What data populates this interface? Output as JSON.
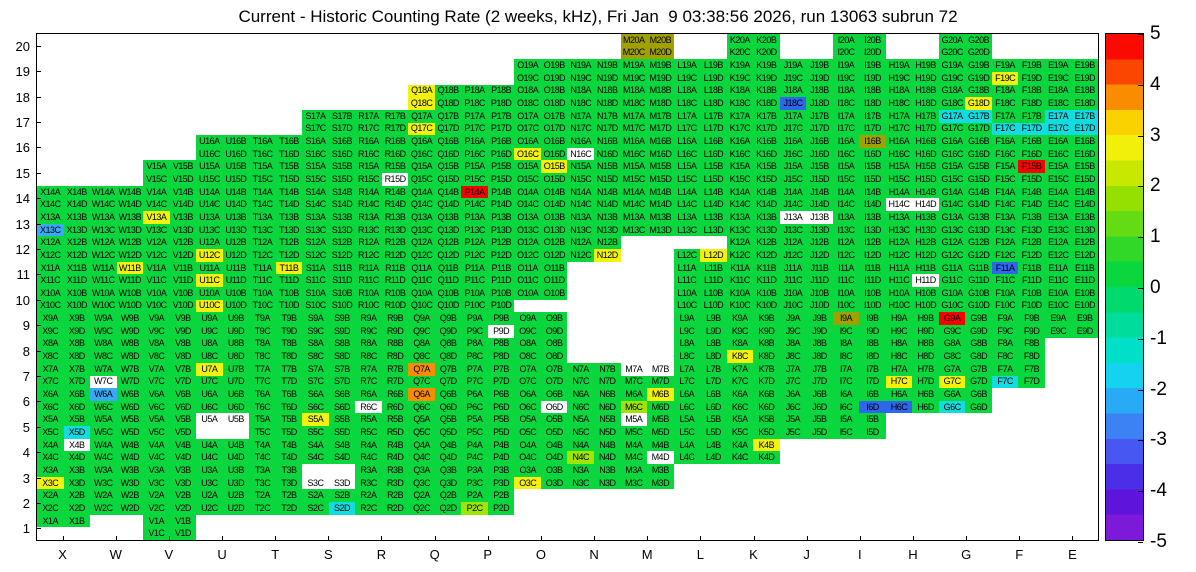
{
  "title": "Current - Historic Counting Rate (2 weeks, kHz), Fri Jan  9 03:38:56 2026, run 13063 subrun 72",
  "y_axis": {
    "ticks": [
      "20",
      "19",
      "18",
      "17",
      "16",
      "15",
      "14",
      "13",
      "12",
      "11",
      "10",
      "9",
      "8",
      "7",
      "6",
      "5",
      "4",
      "3",
      "2",
      "1"
    ]
  },
  "x_axis": {
    "ticks": [
      "X",
      "W",
      "V",
      "U",
      "T",
      "S",
      "R",
      "Q",
      "P",
      "O",
      "N",
      "M",
      "L",
      "K",
      "J",
      "I",
      "H",
      "G",
      "F",
      "E"
    ]
  },
  "colorbar": {
    "ticks": [
      "5",
      "4",
      "3",
      "2",
      "1",
      "0",
      "-1",
      "-2",
      "-3",
      "-4",
      "-5"
    ],
    "bands": [
      "#fa0a00",
      "#fa4600",
      "#fa8c00",
      "#fad200",
      "#f0f00a",
      "#c8e800",
      "#96e000",
      "#64dc14",
      "#32d828",
      "#0ad63e",
      "#00d96e",
      "#00dc9b",
      "#00dfc8",
      "#14d2f0",
      "#28aaf5",
      "#3c82f5",
      "#4657f2",
      "#4b2ee8",
      "#5f14dc",
      "#7d19d9"
    ]
  },
  "palette": {
    "g": "#0ad63e",
    "yg": "#a0e400",
    "y": "#f2f20c",
    "ol": "#a0a000",
    "o": "#fa8c00",
    "r": "#fa0000",
    "c": "#12dce0",
    "lb": "#38aaf5",
    "b": "#2e66ee",
    "w": "#ffffff"
  },
  "chart_data": {
    "type": "heatmap",
    "title": "Current - Historic Counting Rate (2 weeks, kHz)",
    "timestamp": "Fri Jan  9 03:38:56 2026",
    "run": "13063",
    "subrun": "72",
    "columns": [
      "X",
      "W",
      "V",
      "U",
      "T",
      "S",
      "R",
      "Q",
      "P",
      "O",
      "N",
      "M",
      "L",
      "K",
      "J",
      "I",
      "H",
      "G",
      "F",
      "E"
    ],
    "rows": [
      1,
      2,
      3,
      4,
      5,
      6,
      7,
      8,
      9,
      10,
      11,
      12,
      13,
      14,
      15,
      16,
      17,
      18,
      19,
      20
    ],
    "row_min": 1,
    "row_max": 20,
    "channels_per_cell": [
      "A",
      "B",
      "C",
      "D"
    ],
    "cell_label_scheme": "column+row+channel (A,B on top line; C,D on bottom line)",
    "value_range": [
      -5,
      5
    ],
    "default_token": "g",
    "token_values": {
      "g": 0.3,
      "yg": 1.5,
      "y": 2.2,
      "ol": 2.5,
      "o": 3.8,
      "r": 5,
      "c": -1.3,
      "lb": -2.2,
      "b": -3,
      "w": null
    },
    "col_ranges": {
      "X": [
        1,
        14
      ],
      "W": [
        2,
        14
      ],
      "V": [
        1,
        15
      ],
      "U": [
        2,
        16
      ],
      "T": [
        2,
        16
      ],
      "S": [
        2,
        17
      ],
      "R": [
        2,
        17
      ],
      "Q": [
        2,
        18
      ],
      "P": [
        2,
        18
      ],
      "O": [
        3,
        19
      ],
      "N": [
        3,
        19
      ],
      "M": [
        3,
        20
      ],
      "L": [
        4,
        19
      ],
      "K": [
        4,
        20
      ],
      "J": [
        5,
        19
      ],
      "I": [
        5,
        20
      ],
      "H": [
        6,
        19
      ],
      "G": [
        6,
        20
      ],
      "F": [
        7,
        19
      ],
      "E": [
        9,
        19
      ]
    },
    "holes": [
      "N8",
      "M8",
      "N9",
      "M9",
      "N10",
      "M10",
      "N11",
      "M11",
      "M12"
    ],
    "partials": {
      "X1": "ab",
      "U5": "ab",
      "O10": "ab",
      "S3": "cd",
      "L12": "cd"
    },
    "overrides": {
      "M20A": "ol",
      "M20B": "ol",
      "M20C": "ol",
      "M20D": "ol",
      "F19C": "y",
      "Q18A": "y",
      "Q18C": "y",
      "J18C": "b",
      "G18D": "y",
      "Q17C": "y",
      "G17A": "c",
      "G17B": "c",
      "F17C": "c",
      "F17D": "c",
      "E17A": "c",
      "E17B": "c",
      "E17C": "c",
      "E17D": "c",
      "O16C": "y",
      "N16C": "w",
      "I16B": "ol",
      "R15D": "w",
      "O15B": "y",
      "F15B": "r",
      "P14A": "r",
      "H14C": "w",
      "H14D": "w",
      "X13C": "lb",
      "V13A": "y",
      "J13A": "w",
      "J13B": "w",
      "U12C": "y",
      "N12D": "y",
      "L12D": "y",
      "W11B": "y",
      "T11B": "y",
      "U11C": "y",
      "H11D": "w",
      "F11A": "b",
      "U10C": "y",
      "I9A": "ol",
      "G9A": "r",
      "P9D": "w",
      "K8C": "y",
      "W7C": "w",
      "U7A": "y",
      "Q7A": "o",
      "M7A": "w",
      "M7B": "w",
      "H7C": "y",
      "G7C": "y",
      "F7C": "c",
      "W6A": "lb",
      "R6C": "w",
      "Q6A": "o",
      "O6D": "w",
      "M6B": "y",
      "M6C": "yg",
      "I6D": "b",
      "H6C": "b",
      "G6C": "c",
      "X5D": "c",
      "U5A": "w",
      "U5B": "w",
      "S5A": "y",
      "M5A": "w",
      "X4B": "w",
      "N4C": "yg",
      "M4D": "w",
      "K4B": "y",
      "X3C": "y",
      "O3C": "y",
      "S3C": "w",
      "S3D": "w",
      "S2D": "c",
      "P2C": "yg"
    }
  }
}
